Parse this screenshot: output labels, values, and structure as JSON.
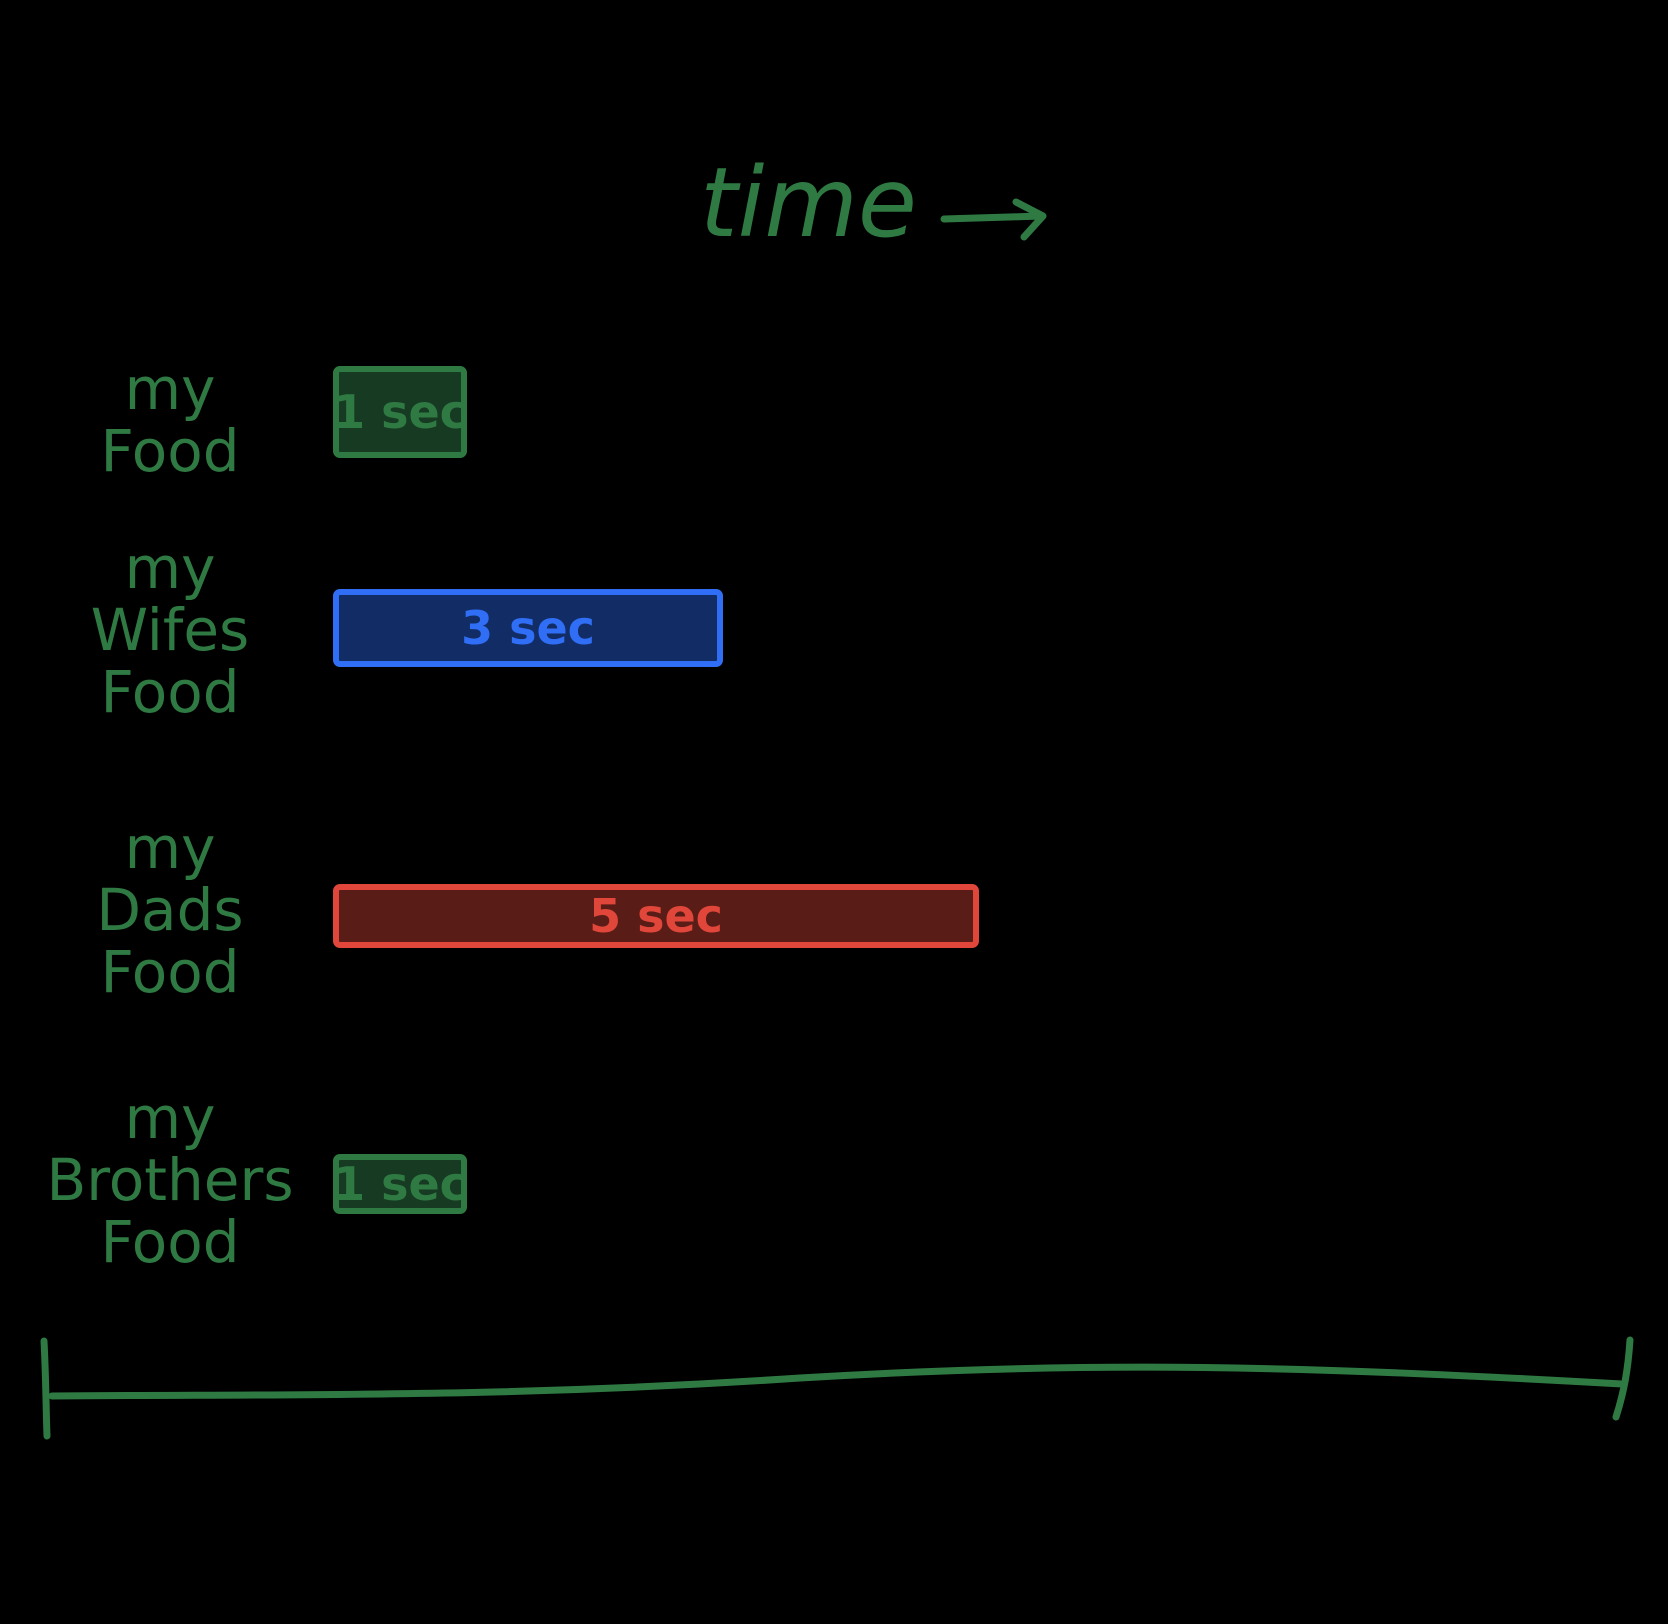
{
  "colors": {
    "background": "#000000",
    "ink_green": "#2f7a43",
    "fill_green": "#173a22",
    "ink_blue": "#2f6ef5",
    "fill_blue": "#122c66",
    "ink_red": "#e0473a",
    "fill_red": "#5a1c16"
  },
  "title": "time",
  "title_arrow_icon": "right-arrow-icon",
  "chart_data": {
    "type": "bar",
    "orientation": "horizontal",
    "title": "time",
    "xlabel": "time",
    "unit": "sec",
    "categories": [
      [
        "my",
        "Food"
      ],
      [
        "my",
        "Wifes",
        "Food"
      ],
      [
        "my",
        "Dads",
        "Food"
      ],
      [
        "my",
        "Brothers",
        "Food"
      ]
    ],
    "values": [
      1,
      3,
      5,
      1
    ],
    "value_labels": [
      "1 sec",
      "3 sec",
      "5 sec",
      "1 sec"
    ],
    "bar_colors": [
      "green",
      "blue",
      "red",
      "green"
    ]
  }
}
